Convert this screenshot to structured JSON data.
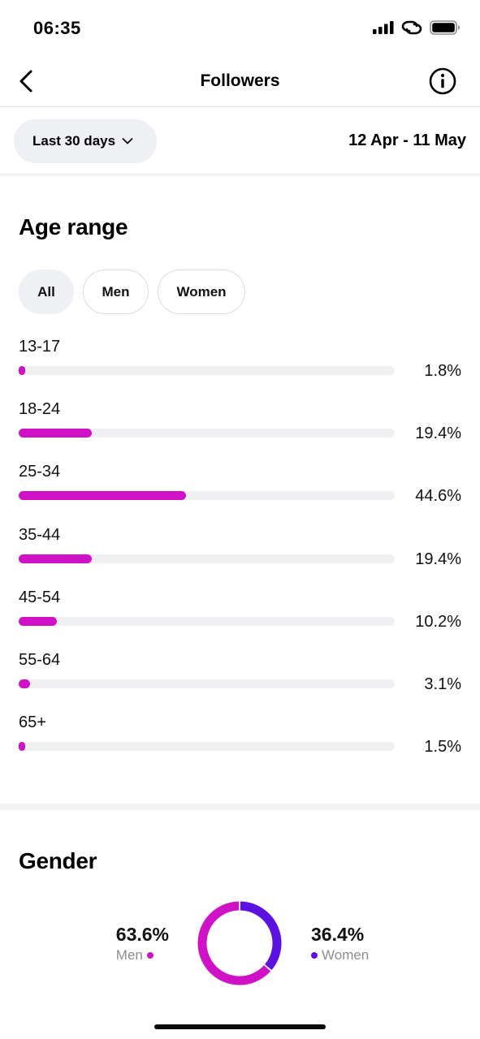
{
  "status_bar": {
    "time": "06:35"
  },
  "nav": {
    "title": "Followers",
    "back_icon": "chevron-left-icon",
    "info_icon": "info-icon"
  },
  "filter": {
    "period_label": "Last 30 days",
    "date_range": "12 Apr - 11 May"
  },
  "age_section": {
    "title": "Age range",
    "segments": [
      {
        "label": "All",
        "active": true
      },
      {
        "label": "Men",
        "active": false
      },
      {
        "label": "Women",
        "active": false
      }
    ],
    "rows": [
      {
        "label": "13-17",
        "percent": "1.8%",
        "value": 1.8
      },
      {
        "label": "18-24",
        "percent": "19.4%",
        "value": 19.4
      },
      {
        "label": "25-34",
        "percent": "44.6%",
        "value": 44.6
      },
      {
        "label": "35-44",
        "percent": "19.4%",
        "value": 19.4
      },
      {
        "label": "45-54",
        "percent": "10.2%",
        "value": 10.2
      },
      {
        "label": "55-64",
        "percent": "3.1%",
        "value": 3.1
      },
      {
        "label": "65+",
        "percent": "1.5%",
        "value": 1.5
      }
    ],
    "scale_max": 100,
    "bar_color": "#d012c7"
  },
  "gender_section": {
    "title": "Gender",
    "men": {
      "percent": "63.6%",
      "label": "Men",
      "value": 63.6,
      "color": "#d012c7"
    },
    "women": {
      "percent": "36.4%",
      "label": "Women",
      "value": 36.4,
      "color": "#5b12e0"
    }
  }
}
